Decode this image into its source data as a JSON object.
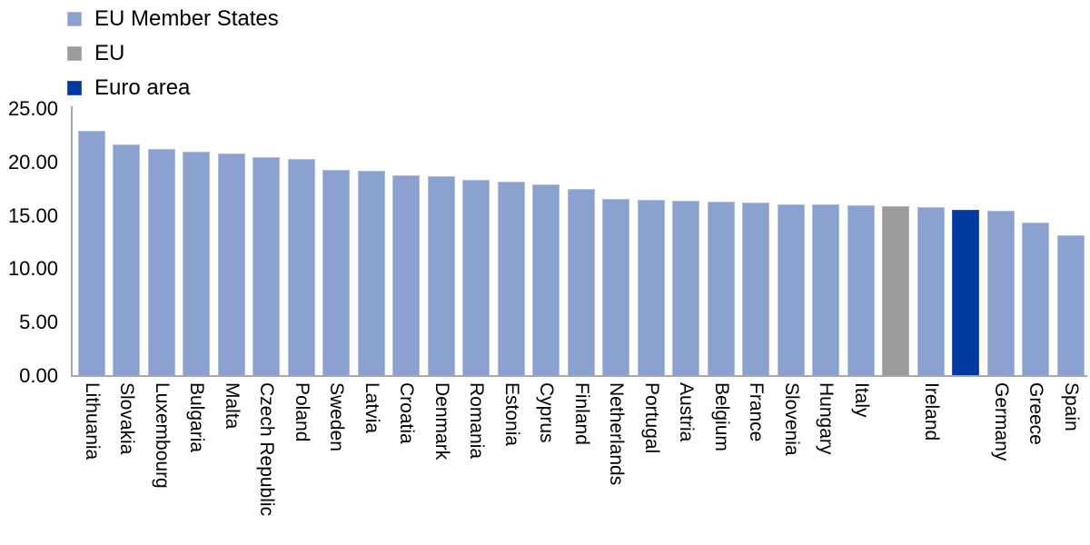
{
  "page": {
    "background": "#ffffff",
    "text_color": "#000000",
    "axis_color": "#a8a8a8"
  },
  "legend": {
    "position": "top-left",
    "items": [
      {
        "label": "EU Member States",
        "group": "EU Member States",
        "color": "#8ba1d0",
        "border": "#aebedf"
      },
      {
        "label": "EU",
        "group": "EU",
        "color": "#9b9b9b",
        "border": "#b2b2b2"
      },
      {
        "label": "Euro area",
        "group": "Euro area",
        "color": "#003a9e",
        "border": "#2e55b5"
      }
    ]
  },
  "chart_data": {
    "type": "bar",
    "title": "",
    "xlabel": "",
    "ylabel": "",
    "ylim": [
      0,
      25
    ],
    "grid": false,
    "legend_position": "top-left",
    "yticks": [
      {
        "value": 25,
        "label": "25.00"
      },
      {
        "value": 20,
        "label": "20.00"
      },
      {
        "value": 15,
        "label": "15.00"
      },
      {
        "value": 10,
        "label": "10.00"
      },
      {
        "value": 5,
        "label": "5.00"
      },
      {
        "value": 0,
        "label": "0.00"
      }
    ],
    "bars": [
      {
        "label": "Lithuania",
        "value": 23.0,
        "group": "EU Member States"
      },
      {
        "label": "Slovakia",
        "value": 21.7,
        "group": "EU Member States"
      },
      {
        "label": "Luxembourg",
        "value": 21.3,
        "group": "EU Member States"
      },
      {
        "label": "Bulgaria",
        "value": 21.0,
        "group": "EU Member States"
      },
      {
        "label": "Malta",
        "value": 20.8,
        "group": "EU Member States"
      },
      {
        "label": "Czech Republic",
        "value": 20.5,
        "group": "EU Member States"
      },
      {
        "label": "Poland",
        "value": 20.3,
        "group": "EU Member States"
      },
      {
        "label": "Sweden",
        "value": 19.3,
        "group": "EU Member States"
      },
      {
        "label": "Latvia",
        "value": 19.2,
        "group": "EU Member States"
      },
      {
        "label": "Croatia",
        "value": 18.8,
        "group": "EU Member States"
      },
      {
        "label": "Denmark",
        "value": 18.7,
        "group": "EU Member States"
      },
      {
        "label": "Romania",
        "value": 18.4,
        "group": "EU Member States"
      },
      {
        "label": "Estonia",
        "value": 18.2,
        "group": "EU Member States"
      },
      {
        "label": "Cyprus",
        "value": 17.9,
        "group": "EU Member States"
      },
      {
        "label": "Finland",
        "value": 17.5,
        "group": "EU Member States"
      },
      {
        "label": "Netherlands",
        "value": 16.6,
        "group": "EU Member States"
      },
      {
        "label": "Portugal",
        "value": 16.5,
        "group": "EU Member States"
      },
      {
        "label": "Austria",
        "value": 16.4,
        "group": "EU Member States"
      },
      {
        "label": "Belgium",
        "value": 16.3,
        "group": "EU Member States"
      },
      {
        "label": "France",
        "value": 16.2,
        "group": "EU Member States"
      },
      {
        "label": "Slovenia",
        "value": 16.1,
        "group": "EU Member States"
      },
      {
        "label": "Hungary",
        "value": 16.1,
        "group": "EU Member States"
      },
      {
        "label": "Italy",
        "value": 16.0,
        "group": "EU Member States"
      },
      {
        "label": "",
        "value": 15.9,
        "group": "EU"
      },
      {
        "label": "Ireland",
        "value": 15.8,
        "group": "EU Member States"
      },
      {
        "label": "",
        "value": 15.6,
        "group": "Euro area"
      },
      {
        "label": "Germany",
        "value": 15.5,
        "group": "EU Member States"
      },
      {
        "label": "Greece",
        "value": 14.4,
        "group": "EU Member States"
      },
      {
        "label": "Spain",
        "value": 13.2,
        "group": "EU Member States"
      }
    ]
  }
}
